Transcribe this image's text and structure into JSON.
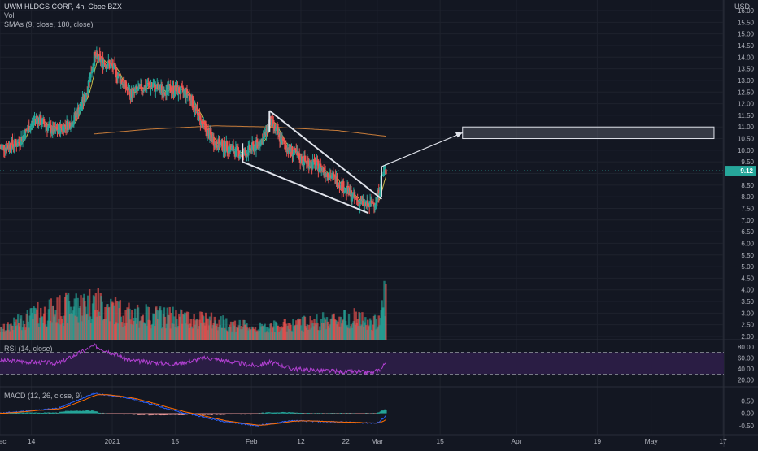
{
  "header": {
    "symbol": "UWM HLDGS CORP, 4h, Cboe BZX",
    "volume_label": "Vol",
    "sma_label": "SMAs (9, close, 180, close)",
    "currency": "USD"
  },
  "rsi": {
    "label": "RSI (14, close)",
    "upper": 70,
    "lower": 30,
    "ticks": [
      "80.00",
      "60.00",
      "40.00",
      "20.00"
    ]
  },
  "macd": {
    "label": "MACD (12, 26, close, 9)",
    "ticks": [
      "0.50",
      "0.00",
      "-0.50"
    ]
  },
  "colors": {
    "background": "#131722",
    "up": "#26a69a",
    "down": "#ef5350",
    "sma_fast": "#c8b84a",
    "sma_slow": "#c77c3a",
    "drawing": "#e0e3eb",
    "rsi_line": "#b040d0",
    "rsi_band": "#2a1d44",
    "macd_line": "#2962ff",
    "signal_line": "#ff6d00",
    "grid": "#1e222d",
    "price_badge": "#26a69a"
  },
  "chart_data": {
    "type": "candlestick",
    "title": "UWM HLDGS CORP, 4h, Cboe BZX",
    "ylabel": "USD",
    "y_ticks": [
      "2.00",
      "2.50",
      "3.00",
      "3.50",
      "4.00",
      "4.50",
      "5.00",
      "5.50",
      "6.00",
      "6.50",
      "7.00",
      "7.50",
      "8.00",
      "8.50",
      "9.00",
      "9.50",
      "10.00",
      "10.50",
      "11.00",
      "11.50",
      "12.00",
      "12.50",
      "13.00",
      "13.50",
      "14.00",
      "14.50",
      "15.00",
      "15.50",
      "16.00"
    ],
    "ylim": [
      2.0,
      16.0
    ],
    "x_ticks": [
      {
        "label": "Dec",
        "date": "2020-12-07"
      },
      {
        "label": "14",
        "date": "2020-12-14"
      },
      {
        "label": "2021",
        "date": "2021-01-01"
      },
      {
        "label": "15",
        "date": "2021-01-15"
      },
      {
        "label": "Feb",
        "date": "2021-02-01"
      },
      {
        "label": "12",
        "date": "2021-02-12"
      },
      {
        "label": "22",
        "date": "2021-02-22"
      },
      {
        "label": "Mar",
        "date": "2021-03-01"
      },
      {
        "label": "15",
        "date": "2021-03-15"
      },
      {
        "label": "Apr",
        "date": "2021-04-01"
      },
      {
        "label": "19",
        "date": "2021-04-19"
      },
      {
        "label": "May",
        "date": "2021-05-01"
      },
      {
        "label": "17",
        "date": "2021-05-17"
      }
    ],
    "last_price": "9.12",
    "price_key_dates": [
      "2020-12-07",
      "2020-12-11",
      "2020-12-15",
      "2020-12-19",
      "2020-12-23",
      "2020-12-26",
      "2020-12-28",
      "2021-01-01",
      "2021-01-05",
      "2021-01-09",
      "2021-01-12",
      "2021-01-15",
      "2021-01-18",
      "2021-01-21",
      "2021-01-24",
      "2021-01-27",
      "2021-01-30",
      "2021-02-02",
      "2021-02-04",
      "2021-02-05",
      "2021-02-08",
      "2021-02-12",
      "2021-02-16",
      "2021-02-20",
      "2021-02-24",
      "2021-02-27",
      "2021-03-01",
      "2021-03-02",
      "2021-03-03"
    ],
    "price_key_values": [
      10.1,
      10.3,
      11.4,
      10.8,
      11.2,
      12.3,
      14.0,
      13.6,
      12.4,
      12.8,
      12.6,
      12.6,
      12.4,
      11.1,
      10.3,
      10.1,
      9.8,
      10.2,
      10.6,
      11.3,
      10.3,
      9.6,
      9.3,
      8.7,
      7.9,
      7.6,
      7.9,
      8.9,
      9.12
    ],
    "volume_key_dates": [
      "2020-12-07",
      "2020-12-15",
      "2020-12-28",
      "2021-01-05",
      "2021-01-15",
      "2021-01-24",
      "2021-02-02",
      "2021-02-12",
      "2021-02-24",
      "2021-02-28",
      "2021-03-02",
      "2021-03-03"
    ],
    "volume_key_values": [
      2.3,
      3.0,
      3.6,
      3.0,
      2.9,
      2.7,
      2.4,
      2.6,
      2.9,
      2.5,
      3.2,
      4.5
    ],
    "volume_ylim": [
      2.0,
      5.6
    ],
    "sma_slow_key_dates": [
      "2020-12-28",
      "2021-01-09",
      "2021-01-24",
      "2021-02-05",
      "2021-02-20",
      "2021-03-03"
    ],
    "sma_slow_key_values": [
      10.7,
      10.9,
      11.05,
      11.0,
      10.85,
      10.6
    ],
    "wedge_upper": [
      {
        "date": "2021-02-05",
        "value": 11.7
      },
      {
        "date": "2021-03-02",
        "value": 7.9
      }
    ],
    "wedge_lower": [
      {
        "date": "2021-01-30",
        "value": 9.5
      },
      {
        "date": "2021-02-27",
        "value": 7.3
      }
    ],
    "arrow": [
      {
        "date": "2021-03-02",
        "value": 9.3
      },
      {
        "date": "2021-03-20",
        "value": 10.75
      }
    ],
    "target_box": {
      "date_start": "2021-03-20",
      "date_end": "2021-05-15",
      "low": 10.5,
      "high": 11.0
    },
    "rsi_key_dates": [
      "2020-12-07",
      "2020-12-20",
      "2020-12-28",
      "2021-01-05",
      "2021-01-15",
      "2021-01-22",
      "2021-02-02",
      "2021-02-05",
      "2021-02-10",
      "2021-02-20",
      "2021-02-28",
      "2021-03-02",
      "2021-03-03"
    ],
    "rsi_key_values": [
      55,
      50,
      82,
      55,
      48,
      60,
      45,
      52,
      40,
      35,
      33,
      40,
      55
    ],
    "macd_key_dates": [
      "2020-12-07",
      "2020-12-20",
      "2020-12-28",
      "2021-01-05",
      "2021-01-15",
      "2021-01-25",
      "2021-02-02",
      "2021-02-10",
      "2021-02-20",
      "2021-03-01",
      "2021-03-03"
    ],
    "macd_key_values": [
      0.0,
      0.2,
      0.8,
      0.6,
      0.1,
      -0.3,
      -0.5,
      -0.3,
      -0.35,
      -0.4,
      -0.1
    ],
    "macd_ylim": [
      -0.8,
      1.0
    ]
  }
}
